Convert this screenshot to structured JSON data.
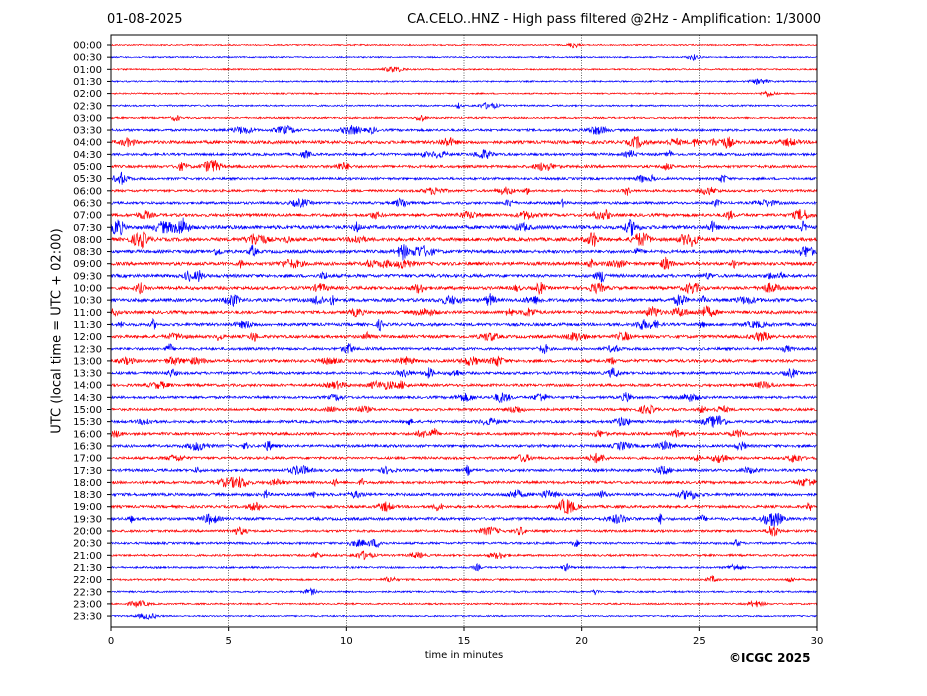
{
  "header": {
    "date": "01-08-2025",
    "title": "CA.CELO..HNZ - High pass filtered @2Hz - Amplification: 1/3000"
  },
  "footer": {
    "copyright": "©ICGC 2025"
  },
  "chart_data": {
    "type": "line",
    "title": "CA.CELO..HNZ - High pass filtered @2Hz - Amplification: 1/3000",
    "xlabel": "time in minutes",
    "ylabel": "UTC (local time = UTC + 02:00)",
    "xlim": [
      0,
      30
    ],
    "x_ticks": [
      0,
      5,
      10,
      15,
      20,
      25,
      30
    ],
    "y_tick_labels": [
      "00:00",
      "00:30",
      "01:00",
      "01:30",
      "02:00",
      "02:30",
      "03:00",
      "03:30",
      "04:00",
      "04:30",
      "05:00",
      "05:30",
      "06:00",
      "06:30",
      "07:00",
      "07:30",
      "08:00",
      "08:30",
      "09:00",
      "09:30",
      "10:00",
      "10:30",
      "11:00",
      "11:30",
      "12:00",
      "12:30",
      "13:00",
      "13:30",
      "14:00",
      "14:30",
      "15:00",
      "15:30",
      "16:00",
      "16:30",
      "17:00",
      "17:30",
      "18:00",
      "18:30",
      "19:00",
      "19:30",
      "20:00",
      "20:30",
      "21:00",
      "21:30",
      "22:00",
      "22:30",
      "23:00",
      "23:30"
    ],
    "grid": "vertical dotted lines at x ticks",
    "trace_colors": [
      "#ff0000",
      "#0000ff"
    ],
    "activity": [
      0.04,
      0.05,
      0.06,
      0.08,
      0.06,
      0.12,
      0.15,
      0.35,
      0.6,
      0.4,
      0.45,
      0.35,
      0.35,
      0.4,
      0.55,
      0.75,
      0.7,
      0.6,
      0.65,
      0.6,
      0.6,
      0.65,
      0.55,
      0.55,
      0.55,
      0.45,
      0.55,
      0.45,
      0.45,
      0.4,
      0.4,
      0.45,
      0.45,
      0.45,
      0.4,
      0.45,
      0.45,
      0.5,
      0.45,
      0.5,
      0.35,
      0.3,
      0.25,
      0.2,
      0.2,
      0.15,
      0.12,
      0.08
    ]
  }
}
